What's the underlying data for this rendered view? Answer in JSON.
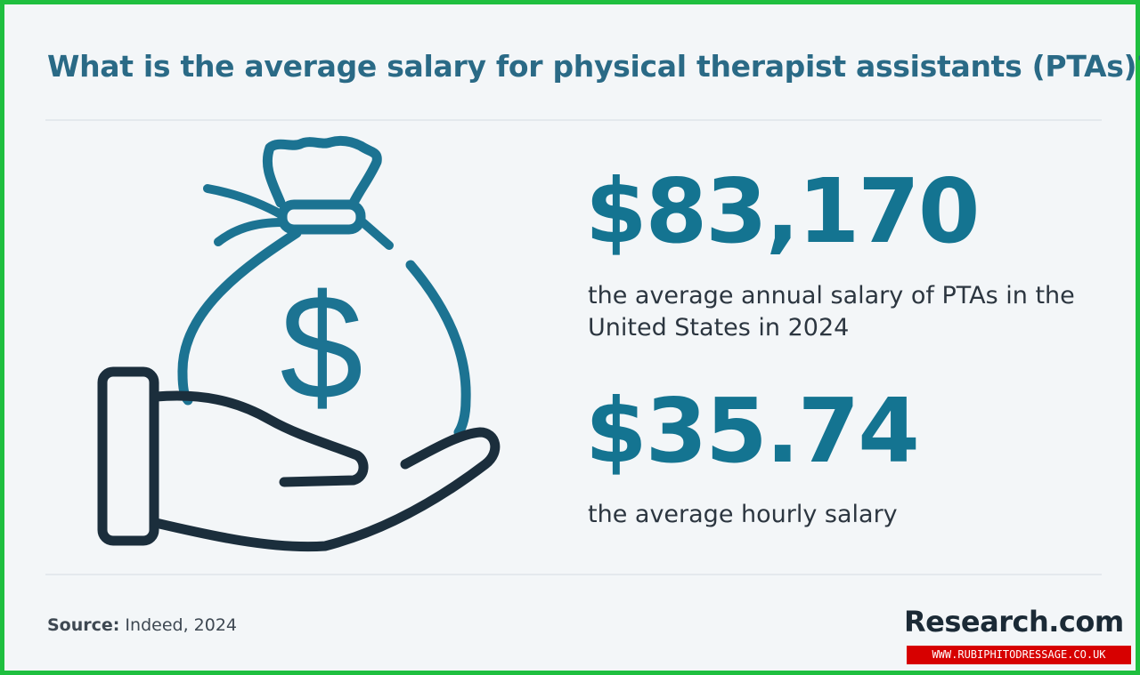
{
  "title": "What is the average salary for physical therapist assistants (PTAs)?",
  "illustration": {
    "icon": "money-bag-in-hand-icon",
    "dollar_glyph": "$"
  },
  "stats": {
    "annual": {
      "value": "$83,170",
      "description": "the average annual salary of PTAs in the United States in 2024"
    },
    "hourly": {
      "value": "$35.74",
      "description": "the average hourly salary"
    }
  },
  "footer": {
    "source_label": "Source:",
    "source_text": " Indeed, 2024",
    "brand": "Research.com"
  },
  "watermark": "WWW.RUBIPHITODRESSAGE.CO.UK",
  "colors": {
    "title": "#2a6a86",
    "accent": "#147491",
    "icon_stroke": "#1c7392",
    "hand_stroke": "#1b2e3c",
    "border": "#1fbf3f",
    "watermark_bg": "#d70000"
  }
}
